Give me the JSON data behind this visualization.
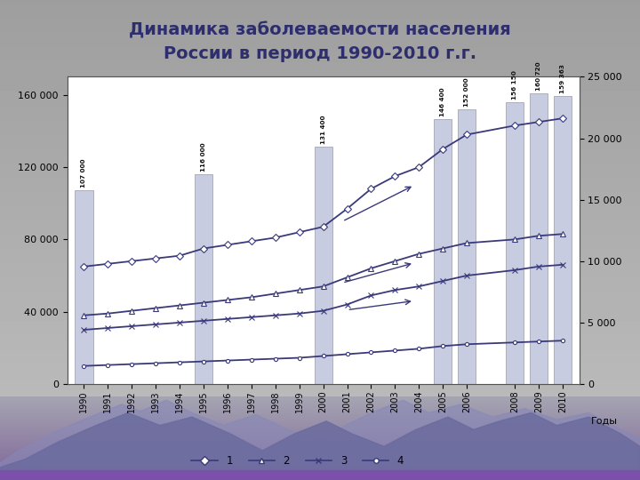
{
  "title_line1": "Динамика заболеваемости населения",
  "title_line2": "России в период 1990-2010 г.г.",
  "years": [
    1990,
    1991,
    1992,
    1993,
    1994,
    1995,
    1996,
    1997,
    1998,
    1999,
    2000,
    2001,
    2002,
    2003,
    2004,
    2005,
    2006,
    2008,
    2009,
    2010
  ],
  "line1": [
    65000,
    66500,
    68000,
    69500,
    71000,
    75000,
    77000,
    79000,
    81000,
    84000,
    87000,
    97000,
    108000,
    115000,
    120000,
    130000,
    138000,
    143000,
    145000,
    147000
  ],
  "line2": [
    38000,
    39000,
    40500,
    42000,
    43500,
    45000,
    46500,
    48000,
    50000,
    52000,
    54000,
    59000,
    64000,
    68000,
    72000,
    75000,
    78000,
    80000,
    82000,
    83000
  ],
  "line3": [
    30000,
    31000,
    32000,
    33000,
    34000,
    35000,
    36000,
    37000,
    38000,
    39000,
    40500,
    44000,
    49000,
    52000,
    54000,
    57000,
    60000,
    63000,
    65000,
    66000
  ],
  "line4": [
    10000,
    10500,
    11000,
    11500,
    12000,
    12500,
    13000,
    13500,
    14000,
    14500,
    15500,
    16500,
    17500,
    18500,
    19500,
    21000,
    22000,
    23000,
    23500,
    24000
  ],
  "bar_years": [
    1990,
    1995,
    2000,
    2005,
    2006,
    2008,
    2009,
    2010
  ],
  "bar_values": [
    107000,
    116000,
    131400,
    146400,
    152000,
    156150,
    160720,
    159363
  ],
  "bar_labels": [
    "107 000",
    "116 000",
    "131 400",
    "146 400",
    "152 000",
    "156 150",
    "160 720",
    "159 363"
  ],
  "bar_color": "#c8cce0",
  "bar_edge_color": "#9999aa",
  "line_color": "#3a3a7a",
  "left_ylim": [
    0,
    170000
  ],
  "right_ylim": [
    0,
    25000
  ],
  "left_yticks": [
    0,
    40000,
    80000,
    120000,
    160000
  ],
  "right_yticks": [
    0,
    5000,
    10000,
    15000,
    20000,
    25000
  ],
  "xlabel": "Годы",
  "plot_bg": "#ffffff",
  "slide_bg_top": "#b0b0b0",
  "slide_bg_bottom": "#888888",
  "title_color": "#2e2e6e",
  "chart_frame_color": "#bbbbcc",
  "mountain_color1": "#7a7faa",
  "mountain_color2": "#9090c0",
  "mountain_gradient_bottom": "#8060a0"
}
